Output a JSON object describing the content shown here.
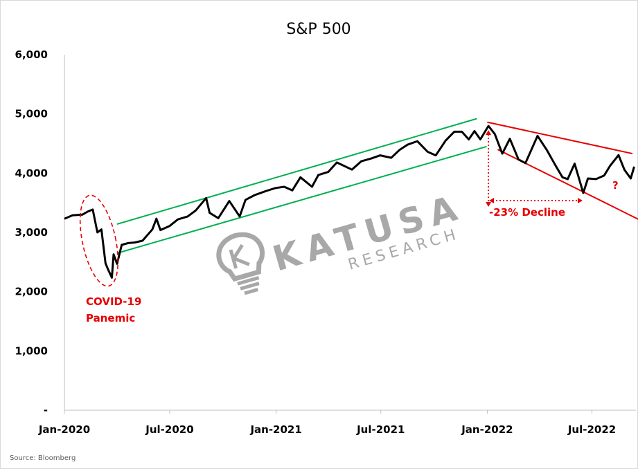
{
  "chart_data": {
    "type": "line",
    "title": "S&P 500",
    "xlabel": "",
    "ylabel": "",
    "ylim": [
      0,
      6000
    ],
    "y_ticks": [
      0,
      1000,
      2000,
      3000,
      4000,
      5000,
      6000
    ],
    "y_tick_labels": [
      "-",
      "1,000",
      "2,000",
      "3,000",
      "4,000",
      "5,000",
      "6,000"
    ],
    "x_range": [
      "2020-01-01",
      "2022-09-15"
    ],
    "x_tick_labels": [
      {
        "date": "2020-01-01",
        "label": "Jan-2020"
      },
      {
        "date": "2020-07-01",
        "label": "Jul-2020"
      },
      {
        "date": "2021-01-01",
        "label": "Jan-2021"
      },
      {
        "date": "2021-07-01",
        "label": "Jul-2021"
      },
      {
        "date": "2022-01-01",
        "label": "Jan-2022"
      },
      {
        "date": "2022-07-01",
        "label": "Jul-2022"
      }
    ],
    "grid": false,
    "legend": "none",
    "series": [
      {
        "color": "#000000",
        "points": [
          [
            "2020-01-01",
            3230
          ],
          [
            "2020-01-15",
            3290
          ],
          [
            "2020-02-01",
            3300
          ],
          [
            "2020-02-10",
            3350
          ],
          [
            "2020-02-19",
            3386
          ],
          [
            "2020-02-27",
            3000
          ],
          [
            "2020-03-05",
            3050
          ],
          [
            "2020-03-12",
            2480
          ],
          [
            "2020-03-16",
            2386
          ],
          [
            "2020-03-23",
            2237
          ],
          [
            "2020-03-26",
            2630
          ],
          [
            "2020-04-01",
            2470
          ],
          [
            "2020-04-09",
            2790
          ],
          [
            "2020-04-20",
            2820
          ],
          [
            "2020-05-01",
            2830
          ],
          [
            "2020-05-15",
            2860
          ],
          [
            "2020-06-01",
            3050
          ],
          [
            "2020-06-08",
            3232
          ],
          [
            "2020-06-15",
            3040
          ],
          [
            "2020-07-01",
            3110
          ],
          [
            "2020-07-15",
            3220
          ],
          [
            "2020-08-01",
            3270
          ],
          [
            "2020-08-15",
            3370
          ],
          [
            "2020-09-02",
            3580
          ],
          [
            "2020-09-08",
            3330
          ],
          [
            "2020-09-23",
            3240
          ],
          [
            "2020-10-12",
            3530
          ],
          [
            "2020-10-30",
            3270
          ],
          [
            "2020-11-09",
            3550
          ],
          [
            "2020-11-25",
            3630
          ],
          [
            "2020-12-15",
            3700
          ],
          [
            "2020-12-31",
            3750
          ],
          [
            "2021-01-15",
            3770
          ],
          [
            "2021-01-29",
            3710
          ],
          [
            "2021-02-12",
            3930
          ],
          [
            "2021-03-04",
            3770
          ],
          [
            "2021-03-15",
            3970
          ],
          [
            "2021-04-01",
            4020
          ],
          [
            "2021-04-16",
            4180
          ],
          [
            "2021-05-12",
            4060
          ],
          [
            "2021-05-28",
            4200
          ],
          [
            "2021-06-15",
            4250
          ],
          [
            "2021-06-30",
            4300
          ],
          [
            "2021-07-19",
            4260
          ],
          [
            "2021-08-02",
            4390
          ],
          [
            "2021-08-16",
            4480
          ],
          [
            "2021-09-02",
            4540
          ],
          [
            "2021-09-20",
            4360
          ],
          [
            "2021-10-04",
            4300
          ],
          [
            "2021-10-21",
            4550
          ],
          [
            "2021-11-05",
            4700
          ],
          [
            "2021-11-18",
            4700
          ],
          [
            "2021-11-30",
            4570
          ],
          [
            "2021-12-10",
            4710
          ],
          [
            "2021-12-20",
            4570
          ],
          [
            "2022-01-03",
            4796
          ],
          [
            "2022-01-14",
            4660
          ],
          [
            "2022-01-27",
            4330
          ],
          [
            "2022-02-09",
            4580
          ],
          [
            "2022-02-24",
            4230
          ],
          [
            "2022-03-08",
            4170
          ],
          [
            "2022-03-29",
            4630
          ],
          [
            "2022-04-14",
            4390
          ],
          [
            "2022-04-29",
            4130
          ],
          [
            "2022-05-11",
            3930
          ],
          [
            "2022-05-20",
            3900
          ],
          [
            "2022-06-01",
            4160
          ],
          [
            "2022-06-16",
            3666
          ],
          [
            "2022-06-24",
            3910
          ],
          [
            "2022-07-08",
            3900
          ],
          [
            "2022-07-22",
            3960
          ],
          [
            "2022-08-01",
            4120
          ],
          [
            "2022-08-16",
            4305
          ],
          [
            "2022-08-26",
            4060
          ],
          [
            "2022-09-06",
            3910
          ],
          [
            "2022-09-12",
            4110
          ]
        ]
      }
    ],
    "trendlines": [
      {
        "color": "#00b050",
        "from": [
          "2020-04-01",
          3140
        ],
        "to": [
          "2021-12-14",
          4920
        ]
      },
      {
        "color": "#00b050",
        "from": [
          "2020-04-01",
          2650
        ],
        "to": [
          "2021-12-31",
          4450
        ]
      },
      {
        "color": "#e60000",
        "from": [
          "2022-01-01",
          4860
        ],
        "to": [
          "2022-09-09",
          4330
        ]
      },
      {
        "color": "#e60000",
        "from": [
          "2022-01-19",
          4400
        ],
        "to": [
          "2022-09-30",
          3170
        ]
      }
    ],
    "annotations": [
      {
        "id": "covid",
        "lines": [
          "COVID-19",
          "Panemic"
        ],
        "color": "#e60000"
      },
      {
        "id": "decline",
        "text": "-23% Decline",
        "color": "#e60000",
        "from": [
          "2022-01-03",
          4796
        ],
        "to": [
          "2022-06-16",
          3666
        ]
      },
      {
        "id": "question",
        "text": "?",
        "color": "#e60000"
      }
    ],
    "source": "Source: Bloomberg"
  },
  "watermark": {
    "brand": "KATUSA",
    "subtitle": "RESEARCH",
    "color": "#8c8c8c"
  }
}
